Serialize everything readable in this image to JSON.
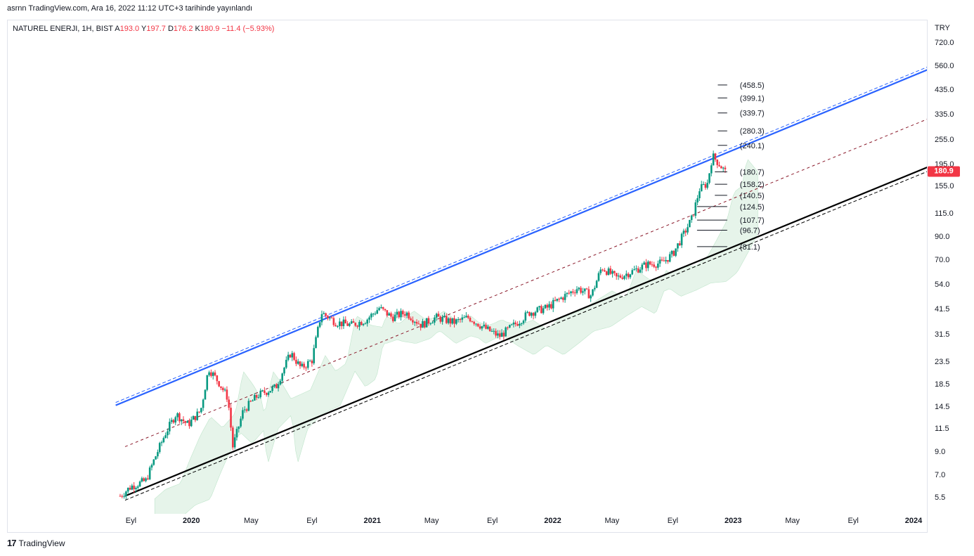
{
  "header": {
    "publish_line": "asrnn TradingView.com, Ara 16, 2022 11:12 UTC+3 tarihinde yayınlandı"
  },
  "legend": {
    "symbol": "NATUREL ENERJI, 1H, BIST",
    "open_label": "A",
    "open": "193.0",
    "high_label": "Y",
    "high": "197.7",
    "low_label": "D",
    "low": "176.2",
    "close_label": "K",
    "close": "180.9",
    "change": "−11.4 (−5.93%)"
  },
  "axis": {
    "currency": "TRY",
    "y_ticks": [
      "720.0",
      "560.0",
      "435.0",
      "335.0",
      "255.0",
      "195.0",
      "155.0",
      "115.0",
      "90.0",
      "70.0",
      "54.0",
      "41.5",
      "31.5",
      "23.5",
      "18.5",
      "14.5",
      "11.5",
      "9.0",
      "7.0",
      "5.5"
    ],
    "x_ticks": [
      {
        "label": "Eyl",
        "bold": false
      },
      {
        "label": "2020",
        "bold": true
      },
      {
        "label": "May",
        "bold": false
      },
      {
        "label": "Eyl",
        "bold": false
      },
      {
        "label": "2021",
        "bold": true
      },
      {
        "label": "May",
        "bold": false
      },
      {
        "label": "Eyl",
        "bold": false
      },
      {
        "label": "2022",
        "bold": true
      },
      {
        "label": "May",
        "bold": false
      },
      {
        "label": "Eyl",
        "bold": false
      },
      {
        "label": "2023",
        "bold": true
      },
      {
        "label": "May",
        "bold": false
      },
      {
        "label": "Eyl",
        "bold": false
      },
      {
        "label": "2024",
        "bold": true
      }
    ],
    "last_price": "180.9"
  },
  "footer": {
    "brand": "TradingView"
  },
  "colors": {
    "up": "#089981",
    "down": "#f23645",
    "upper_channel": "#2962ff",
    "lower_channel": "#000000",
    "mid_channel": "#8b1a2b",
    "cloud_green": "#e4f3e8",
    "cloud_red": "#fbe3e3"
  },
  "chart_data": {
    "type": "candlestick",
    "symbol": "NATUREL ENERJI",
    "interval": "1H",
    "exchange": "BIST",
    "y_scale": "log",
    "ylim": [
      5.0,
      800.0
    ],
    "fib_levels": [
      "(458.5)",
      "(399.1)",
      "(339.7)",
      "(280.3)",
      "(240.1)",
      "(180.7)",
      "(158.2)",
      "(140.5)",
      "(124.5)",
      "(107.7)",
      "(96.7)",
      "(81.1)"
    ],
    "fib_values": [
      458.5,
      399.1,
      339.7,
      280.3,
      240.1,
      180.7,
      158.2,
      140.5,
      124.5,
      107.7,
      96.7,
      81.1
    ],
    "price_path": [
      {
        "d": "2019-08-10",
        "p": 5.6
      },
      {
        "d": "2019-09-01",
        "p": 6.2
      },
      {
        "d": "2019-10-01",
        "p": 6.6
      },
      {
        "d": "2019-10-20",
        "p": 8.5
      },
      {
        "d": "2019-11-10",
        "p": 11.0
      },
      {
        "d": "2019-12-01",
        "p": 13.5
      },
      {
        "d": "2019-12-25",
        "p": 12.0
      },
      {
        "d": "2020-01-20",
        "p": 14.0
      },
      {
        "d": "2020-02-05",
        "p": 22.0
      },
      {
        "d": "2020-02-25",
        "p": 19.0
      },
      {
        "d": "2020-03-15",
        "p": 16.0
      },
      {
        "d": "2020-03-25",
        "p": 9.5
      },
      {
        "d": "2020-04-15",
        "p": 14.0
      },
      {
        "d": "2020-05-15",
        "p": 16.5
      },
      {
        "d": "2020-06-20",
        "p": 18.0
      },
      {
        "d": "2020-07-20",
        "p": 26.0
      },
      {
        "d": "2020-08-10",
        "p": 22.0
      },
      {
        "d": "2020-09-01",
        "p": 24.0
      },
      {
        "d": "2020-09-20",
        "p": 40.0
      },
      {
        "d": "2020-10-20",
        "p": 36.0
      },
      {
        "d": "2020-11-20",
        "p": 35.0
      },
      {
        "d": "2020-12-20",
        "p": 37.0
      },
      {
        "d": "2021-01-15",
        "p": 42.0
      },
      {
        "d": "2021-02-10",
        "p": 38.0
      },
      {
        "d": "2021-03-10",
        "p": 40.0
      },
      {
        "d": "2021-04-10",
        "p": 35.0
      },
      {
        "d": "2021-05-10",
        "p": 38.0
      },
      {
        "d": "2021-06-15",
        "p": 36.0
      },
      {
        "d": "2021-07-15",
        "p": 38.0
      },
      {
        "d": "2021-08-15",
        "p": 34.0
      },
      {
        "d": "2021-09-15",
        "p": 31.0
      },
      {
        "d": "2021-10-15",
        "p": 35.0
      },
      {
        "d": "2021-11-15",
        "p": 40.0
      },
      {
        "d": "2021-12-20",
        "p": 42.0
      },
      {
        "d": "2022-01-20",
        "p": 47.0
      },
      {
        "d": "2022-02-20",
        "p": 52.0
      },
      {
        "d": "2022-03-20",
        "p": 48.0
      },
      {
        "d": "2022-04-10",
        "p": 65.0
      },
      {
        "d": "2022-05-10",
        "p": 58.0
      },
      {
        "d": "2022-06-10",
        "p": 62.0
      },
      {
        "d": "2022-07-10",
        "p": 67.0
      },
      {
        "d": "2022-08-10",
        "p": 68.0
      },
      {
        "d": "2022-09-01",
        "p": 75.0
      },
      {
        "d": "2022-09-20",
        "p": 90.0
      },
      {
        "d": "2022-10-10",
        "p": 110.0
      },
      {
        "d": "2022-10-25",
        "p": 150.0
      },
      {
        "d": "2022-11-10",
        "p": 160.0
      },
      {
        "d": "2022-11-20",
        "p": 215.0
      },
      {
        "d": "2022-12-05",
        "p": 195.0
      },
      {
        "d": "2022-12-16",
        "p": 180.9
      }
    ],
    "upper_channel": [
      {
        "d": "2019-08-01",
        "p": 14.8
      },
      {
        "d": "2024-02-15",
        "p": 560.0
      }
    ],
    "lower_channel": [
      {
        "d": "2019-08-20",
        "p": 5.6
      },
      {
        "d": "2024-02-15",
        "p": 197.0
      }
    ],
    "mid_channel": [
      {
        "d": "2019-08-20",
        "p": 9.5
      },
      {
        "d": "2024-02-15",
        "p": 330.0
      }
    ]
  }
}
